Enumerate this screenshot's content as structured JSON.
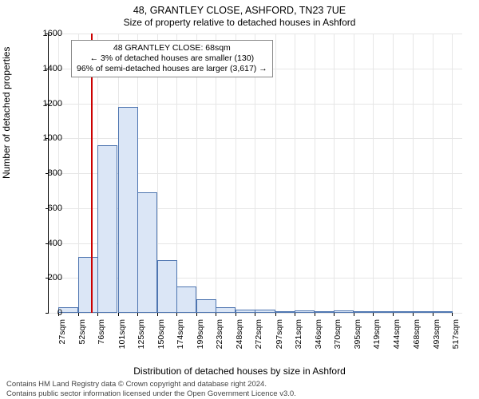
{
  "chart": {
    "type": "histogram",
    "title": "48, GRANTLEY CLOSE, ASHFORD, TN23 7UE",
    "subtitle": "Size of property relative to detached houses in Ashford",
    "x_axis_label": "Distribution of detached houses by size in Ashford",
    "y_axis_label": "Number of detached properties",
    "background_color": "#ffffff",
    "grid_color": "#e6e6e6",
    "bar_fill": "#dbe6f6",
    "bar_border": "#4e75b0",
    "ref_line_color": "#cc0000",
    "ylim": [
      0,
      1600
    ],
    "yticks": [
      0,
      200,
      400,
      600,
      800,
      1000,
      1200,
      1400,
      1600
    ],
    "x_tick_labels": [
      "27sqm",
      "52sqm",
      "76sqm",
      "101sqm",
      "125sqm",
      "150sqm",
      "174sqm",
      "199sqm",
      "223sqm",
      "248sqm",
      "272sqm",
      "297sqm",
      "321sqm",
      "346sqm",
      "370sqm",
      "395sqm",
      "419sqm",
      "444sqm",
      "468sqm",
      "493sqm",
      "517sqm"
    ],
    "x_tick_positions": [
      27,
      52,
      76,
      101,
      125,
      150,
      174,
      199,
      223,
      248,
      272,
      297,
      321,
      346,
      370,
      395,
      419,
      444,
      468,
      493,
      517
    ],
    "x_range": [
      15,
      530
    ],
    "bin_width": 25,
    "bins": [
      {
        "start": 27,
        "count": 30
      },
      {
        "start": 52,
        "count": 320
      },
      {
        "start": 76,
        "count": 960
      },
      {
        "start": 101,
        "count": 1180
      },
      {
        "start": 125,
        "count": 690
      },
      {
        "start": 150,
        "count": 300
      },
      {
        "start": 174,
        "count": 150
      },
      {
        "start": 199,
        "count": 80
      },
      {
        "start": 223,
        "count": 30
      },
      {
        "start": 248,
        "count": 20
      },
      {
        "start": 272,
        "count": 20
      },
      {
        "start": 297,
        "count": 8
      },
      {
        "start": 321,
        "count": 15
      },
      {
        "start": 346,
        "count": 8
      },
      {
        "start": 370,
        "count": 12
      },
      {
        "start": 395,
        "count": 5
      },
      {
        "start": 419,
        "count": 3
      },
      {
        "start": 444,
        "count": 6
      },
      {
        "start": 468,
        "count": 3
      },
      {
        "start": 493,
        "count": 3
      }
    ],
    "reference_value": 68,
    "annotation": {
      "line1": "48 GRANTLEY CLOSE: 68sqm",
      "line2": "← 3% of detached houses are smaller (130)",
      "line3": "96% of semi-detached houses are larger (3,617) →"
    },
    "credit_line1": "Contains HM Land Registry data © Crown copyright and database right 2024.",
    "credit_line2": "Contains public sector information licensed under the Open Government Licence v3.0.",
    "title_fontsize": 12.5,
    "subtitle_fontsize": 12,
    "axis_label_fontsize": 12,
    "tick_fontsize": 11,
    "annotation_fontsize": 10.5,
    "credit_fontsize": 9.5
  }
}
